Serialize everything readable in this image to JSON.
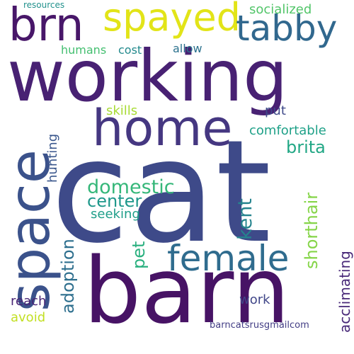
{
  "words": {
    "cat": {
      "text": "cat",
      "color": "#3e4a89"
    },
    "working": {
      "text": "working",
      "color": "#482173"
    },
    "barn": {
      "text": "barn",
      "color": "#471365"
    },
    "home": {
      "text": "home",
      "color": "#453781"
    },
    "space": {
      "text": "space",
      "color": "#3b528b"
    },
    "brn": {
      "text": "brn",
      "color": "#481769"
    },
    "spayed": {
      "text": "spayed",
      "color": "#e2e418"
    },
    "tabby": {
      "text": "tabby",
      "color": "#31688e"
    },
    "female": {
      "text": "female",
      "color": "#2f6c8e"
    },
    "brita": {
      "text": "brita",
      "color": "#22a785"
    },
    "domestic": {
      "text": "domestic",
      "color": "#35b779"
    },
    "center": {
      "text": "center",
      "color": "#1f988b"
    },
    "shorthair": {
      "text": "shorthair",
      "color": "#86d549"
    },
    "kent": {
      "text": "kent",
      "color": "#25848e"
    },
    "adoption": {
      "text": "adoption",
      "color": "#2e6f8e"
    },
    "pet": {
      "text": "pet",
      "color": "#2ab07f"
    },
    "acclimating": {
      "text": "acclimating",
      "color": "#482878"
    },
    "comfortable": {
      "text": "comfortable",
      "color": "#1fa188"
    },
    "socialized": {
      "text": "socialized",
      "color": "#52c569"
    },
    "put": {
      "text": "put",
      "color": "#3e4989"
    },
    "skills": {
      "text": "skills",
      "color": "#a8db34"
    },
    "hunting": {
      "text": "hunting",
      "color": "#39568c"
    },
    "seeking": {
      "text": "seeking",
      "color": "#1f9e89"
    },
    "work": {
      "text": "work",
      "color": "#404688"
    },
    "reach": {
      "text": "reach",
      "color": "#482475"
    },
    "avoid": {
      "text": "avoid",
      "color": "#c2df23"
    },
    "humans": {
      "text": "humans",
      "color": "#44bf70"
    },
    "cost": {
      "text": "cost",
      "color": "#238a8d"
    },
    "allow": {
      "text": "allow",
      "color": "#2c728e"
    },
    "resources": {
      "text": "resources",
      "color": "#21918c"
    },
    "barncatsrusgmailcom": {
      "text": "barncatsrusgmailcom",
      "color": "#433e85"
    }
  }
}
